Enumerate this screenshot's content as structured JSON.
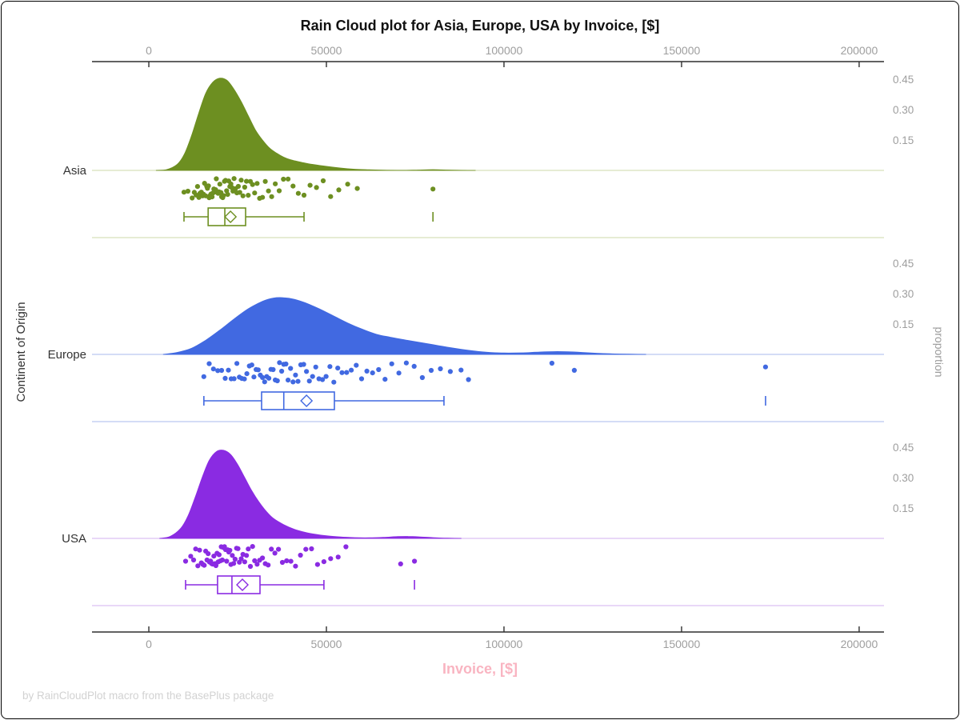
{
  "chart_data": {
    "type": "raincloud (density area + jittered scatter + boxplot)",
    "title": "Rain Cloud plot for Asia, Europe, USA by Invoice, [$]",
    "xlabel": "Invoice, [$]",
    "ylabel": "Continent of Origin",
    "ylabel_right": "proportion",
    "footer": "by RainCloudPlot macro from the BasePlus package",
    "x_ticks": [
      0,
      50000,
      100000,
      150000,
      200000
    ],
    "xlim": [
      -16000,
      207000
    ],
    "proportion_ticks": [
      0.45,
      0.3,
      0.15
    ],
    "grid": false,
    "legend": "none",
    "colors": {
      "axis_line": "#2f2f2f",
      "axis_text": "#9e9e9e",
      "xlabel_pink": "#F9B4C1",
      "footer_gray": "#d2d2d2",
      "group_label": "#333333"
    },
    "groups": [
      {
        "name": "Asia",
        "color": "#6D8F21",
        "color_light": "#dde6c5",
        "density": [
          [
            2000,
            0
          ],
          [
            5000,
            0.004
          ],
          [
            8000,
            0.03
          ],
          [
            10000,
            0.08
          ],
          [
            12000,
            0.17
          ],
          [
            14000,
            0.28
          ],
          [
            16000,
            0.38
          ],
          [
            18000,
            0.435
          ],
          [
            20000,
            0.455
          ],
          [
            22000,
            0.445
          ],
          [
            24000,
            0.4
          ],
          [
            26000,
            0.34
          ],
          [
            28000,
            0.27
          ],
          [
            30000,
            0.2
          ],
          [
            32000,
            0.15
          ],
          [
            34000,
            0.11
          ],
          [
            36000,
            0.085
          ],
          [
            38000,
            0.065
          ],
          [
            40000,
            0.052
          ],
          [
            43000,
            0.04
          ],
          [
            46000,
            0.03
          ],
          [
            50000,
            0.02
          ],
          [
            54000,
            0.012
          ],
          [
            58000,
            0.006
          ],
          [
            62000,
            0.003
          ],
          [
            66000,
            0.001
          ],
          [
            72000,
            0.0005
          ],
          [
            76000,
            0.002
          ],
          [
            80000,
            0.004
          ],
          [
            84000,
            0.002
          ],
          [
            88000,
            0.0005
          ],
          [
            92000,
            0
          ]
        ],
        "box": {
          "whisker_low": 9900,
          "q1": 16700,
          "median": 21400,
          "mean": 23000,
          "q3": 27250,
          "whisker_high": 43700,
          "outliers": [
            80000
          ]
        },
        "points": [
          9900,
          11000,
          12200,
          12800,
          13300,
          13700,
          14100,
          14400,
          14800,
          15100,
          15400,
          15700,
          16000,
          16300,
          16500,
          16800,
          17000,
          17300,
          17500,
          17800,
          18000,
          18300,
          18500,
          18800,
          19000,
          19300,
          19500,
          19800,
          20000,
          20300,
          20500,
          20800,
          21000,
          21300,
          21600,
          21900,
          22200,
          22500,
          22800,
          23100,
          23400,
          23700,
          24000,
          24400,
          24800,
          25200,
          25600,
          26000,
          26500,
          27000,
          27500,
          28000,
          28600,
          29200,
          29800,
          30500,
          31200,
          32000,
          32800,
          33700,
          34600,
          35600,
          36700,
          37900,
          39200,
          40600,
          42100,
          43700,
          45400,
          47200,
          49100,
          51200,
          53500,
          56000,
          58700,
          80000
        ]
      },
      {
        "name": "Europe",
        "color": "#4169E1",
        "color_light": "#c6d1f3",
        "density": [
          [
            4000,
            0
          ],
          [
            8000,
            0.01
          ],
          [
            12000,
            0.03
          ],
          [
            16000,
            0.07
          ],
          [
            20000,
            0.12
          ],
          [
            24000,
            0.175
          ],
          [
            28000,
            0.225
          ],
          [
            32000,
            0.262
          ],
          [
            35000,
            0.278
          ],
          [
            38000,
            0.28
          ],
          [
            41000,
            0.272
          ],
          [
            44000,
            0.255
          ],
          [
            48000,
            0.225
          ],
          [
            52000,
            0.19
          ],
          [
            56000,
            0.155
          ],
          [
            60000,
            0.125
          ],
          [
            64000,
            0.1
          ],
          [
            68000,
            0.085
          ],
          [
            72000,
            0.072
          ],
          [
            76000,
            0.06
          ],
          [
            80000,
            0.048
          ],
          [
            84000,
            0.036
          ],
          [
            88000,
            0.025
          ],
          [
            92000,
            0.016
          ],
          [
            96000,
            0.01
          ],
          [
            100000,
            0.007
          ],
          [
            105000,
            0.008
          ],
          [
            110000,
            0.012
          ],
          [
            114000,
            0.014
          ],
          [
            118000,
            0.013
          ],
          [
            122000,
            0.01
          ],
          [
            126000,
            0.006
          ],
          [
            130000,
            0.003
          ],
          [
            135000,
            0.001
          ],
          [
            140000,
            0
          ]
        ],
        "box": {
          "whisker_low": 15500,
          "q1": 31750,
          "median": 38000,
          "mean": 44400,
          "q3": 52250,
          "whisker_high": 83100,
          "outliers": [
            173650
          ]
        },
        "points": [
          15500,
          17000,
          18200,
          19400,
          20500,
          21500,
          22400,
          23200,
          24000,
          24800,
          25500,
          26200,
          26900,
          27600,
          28300,
          29000,
          29600,
          30200,
          30800,
          31400,
          32000,
          32600,
          33200,
          33800,
          34400,
          35000,
          35600,
          36200,
          36800,
          37400,
          38000,
          38600,
          39200,
          39900,
          40600,
          41300,
          42000,
          42800,
          43600,
          44400,
          45200,
          46100,
          47000,
          47900,
          48900,
          49900,
          51000,
          52100,
          53200,
          54400,
          55700,
          57000,
          58400,
          59900,
          61400,
          63000,
          64700,
          66500,
          68400,
          70400,
          72500,
          74700,
          77000,
          79500,
          82100,
          84900,
          87900,
          90000,
          113500,
          119800,
          173650
        ]
      },
      {
        "name": "USA",
        "color": "#8A2BE2",
        "color_light": "#e2cbf5",
        "density": [
          [
            3000,
            0
          ],
          [
            6000,
            0.01
          ],
          [
            9000,
            0.05
          ],
          [
            11000,
            0.11
          ],
          [
            13000,
            0.2
          ],
          [
            15000,
            0.3
          ],
          [
            17000,
            0.385
          ],
          [
            19000,
            0.428
          ],
          [
            21000,
            0.435
          ],
          [
            23000,
            0.415
          ],
          [
            25000,
            0.365
          ],
          [
            27000,
            0.3
          ],
          [
            29000,
            0.235
          ],
          [
            31000,
            0.18
          ],
          [
            33000,
            0.135
          ],
          [
            35000,
            0.1
          ],
          [
            38000,
            0.068
          ],
          [
            41000,
            0.045
          ],
          [
            44000,
            0.03
          ],
          [
            47000,
            0.02
          ],
          [
            50000,
            0.013
          ],
          [
            54000,
            0.007
          ],
          [
            58000,
            0.004
          ],
          [
            62000,
            0.003
          ],
          [
            66000,
            0.005
          ],
          [
            70000,
            0.009
          ],
          [
            73000,
            0.01
          ],
          [
            76000,
            0.008
          ],
          [
            80000,
            0.004
          ],
          [
            84000,
            0.001
          ],
          [
            88000,
            0
          ]
        ],
        "box": {
          "whisker_low": 10350,
          "q1": 19350,
          "median": 23400,
          "mean": 26350,
          "q3": 31300,
          "whisker_high": 49300,
          "outliers": [
            74800
          ]
        },
        "points": [
          10350,
          11800,
          12600,
          13200,
          13800,
          14300,
          14800,
          15200,
          15600,
          16000,
          16400,
          16700,
          17100,
          17400,
          17700,
          18000,
          18300,
          18600,
          18900,
          19200,
          19500,
          19800,
          20100,
          20400,
          20700,
          21000,
          21300,
          21600,
          21900,
          22200,
          22500,
          22800,
          23100,
          23500,
          23900,
          24300,
          24700,
          25100,
          25500,
          26000,
          26500,
          27000,
          27500,
          28000,
          28600,
          29200,
          29800,
          30500,
          31200,
          32000,
          32800,
          33600,
          34500,
          35500,
          36500,
          37600,
          38800,
          40000,
          41300,
          42700,
          44200,
          45800,
          47500,
          49300,
          51200,
          53300,
          55500,
          70900,
          74800
        ]
      }
    ]
  }
}
